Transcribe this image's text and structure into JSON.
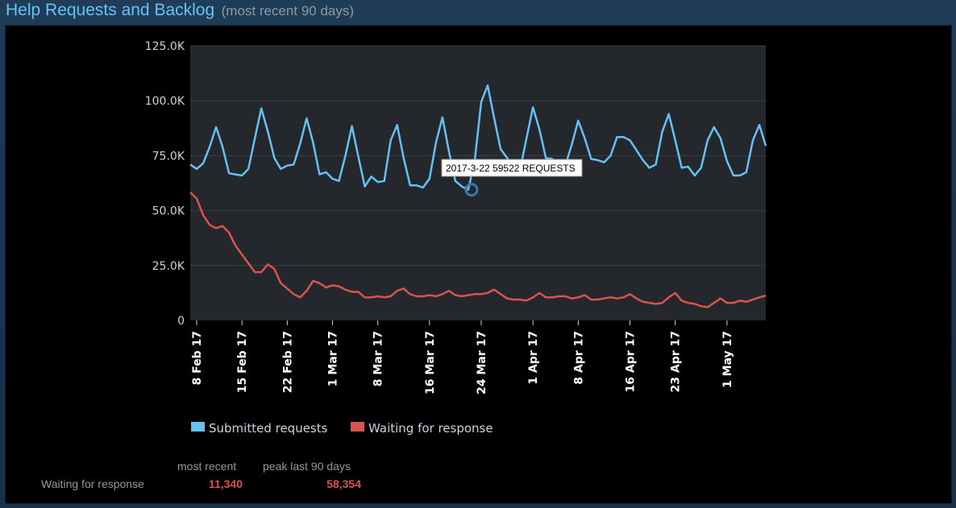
{
  "header": {
    "title": "Help Requests and Backlog",
    "subtitle": "(most recent 90 days)"
  },
  "tooltip": {
    "text": "2017-3-22 59522 REQUESTS"
  },
  "summary": {
    "col_most_recent": "most recent",
    "col_peak": "peak last 90 days",
    "row_label": "Waiting for response",
    "most_recent_value": "11,340",
    "peak_value": "58,354"
  },
  "colors": {
    "submitted": "#66c0f4",
    "waiting": "#d9534f",
    "plot_bg": "#24282d",
    "grid": "#3a3f45",
    "axis_text": "#c6d4df"
  },
  "chart_data": {
    "type": "line",
    "x_range": [
      "2017-02-07",
      "2017-05-07"
    ],
    "y_range": [
      0,
      125000
    ],
    "y_ticks": [
      0,
      25000,
      50000,
      75000,
      100000,
      125000
    ],
    "y_tick_labels": [
      "0",
      "25.0K",
      "50.0K",
      "75.0K",
      "100.0K",
      "125.0K"
    ],
    "x_ticks": [
      {
        "date": "2017-02-08",
        "label": "8 Feb 17"
      },
      {
        "date": "2017-02-15",
        "label": "15 Feb 17"
      },
      {
        "date": "2017-02-22",
        "label": "22 Feb 17"
      },
      {
        "date": "2017-03-01",
        "label": "1 Mar 17"
      },
      {
        "date": "2017-03-08",
        "label": "8 Mar 17"
      },
      {
        "date": "2017-03-16",
        "label": "16 Mar 17"
      },
      {
        "date": "2017-03-24",
        "label": "24 Mar 17"
      },
      {
        "date": "2017-04-01",
        "label": "1 Apr 17"
      },
      {
        "date": "2017-04-08",
        "label": "8 Apr 17"
      },
      {
        "date": "2017-04-16",
        "label": "16 Apr 17"
      },
      {
        "date": "2017-04-23",
        "label": "23 Apr 17"
      },
      {
        "date": "2017-05-01",
        "label": "1 May 17"
      }
    ],
    "grid": true,
    "legend_position": "bottom-left",
    "highlight": {
      "date": "2017-03-22",
      "value": 59522
    },
    "series": [
      {
        "name": "Submitted requests",
        "values": [
          71000,
          69000,
          71500,
          79000,
          88000,
          79000,
          67000,
          66500,
          66000,
          69000,
          83000,
          96500,
          86000,
          74000,
          69000,
          70500,
          71000,
          80500,
          92000,
          81000,
          66500,
          67500,
          64500,
          63500,
          75000,
          88500,
          74500,
          61000,
          65500,
          63000,
          63500,
          82000,
          89000,
          74000,
          61500,
          61500,
          60500,
          64500,
          81000,
          92500,
          77000,
          63500,
          61000,
          59522,
          73000,
          99500,
          107000,
          92000,
          78000,
          74000,
          69500,
          68500,
          83000,
          97000,
          87000,
          74000,
          73500,
          70000,
          70500,
          80000,
          91000,
          83000,
          73500,
          73000,
          72000,
          75000,
          83500,
          83500,
          82000,
          77500,
          73000,
          69500,
          71000,
          86000,
          94000,
          82000,
          69500,
          70000,
          66000,
          69500,
          82000,
          88000,
          83000,
          72500,
          66000,
          66000,
          67500,
          82000,
          89000,
          79500
        ]
      },
      {
        "name": "Waiting for response",
        "values": [
          58354,
          55500,
          48000,
          43500,
          42000,
          43000,
          40000,
          34000,
          30000,
          26000,
          22000,
          22000,
          25500,
          23500,
          17000,
          14500,
          12000,
          10500,
          13500,
          18000,
          17000,
          15000,
          16000,
          15500,
          14000,
          13000,
          13000,
          10500,
          10500,
          11000,
          10500,
          11000,
          13500,
          14500,
          12000,
          11000,
          11000,
          11500,
          11000,
          12000,
          13500,
          11500,
          11000,
          11500,
          12000,
          12000,
          12500,
          14000,
          12000,
          10000,
          9500,
          9500,
          9000,
          10500,
          12500,
          10500,
          10500,
          11000,
          11000,
          10000,
          10500,
          11500,
          9500,
          9500,
          10000,
          10500,
          10000,
          10500,
          12000,
          10000,
          8500,
          8000,
          7500,
          8000,
          10500,
          12500,
          9000,
          8000,
          7500,
          6500,
          6000,
          8000,
          10000,
          8000,
          8000,
          9000,
          8500,
          9500,
          10500,
          11340
        ]
      }
    ]
  }
}
